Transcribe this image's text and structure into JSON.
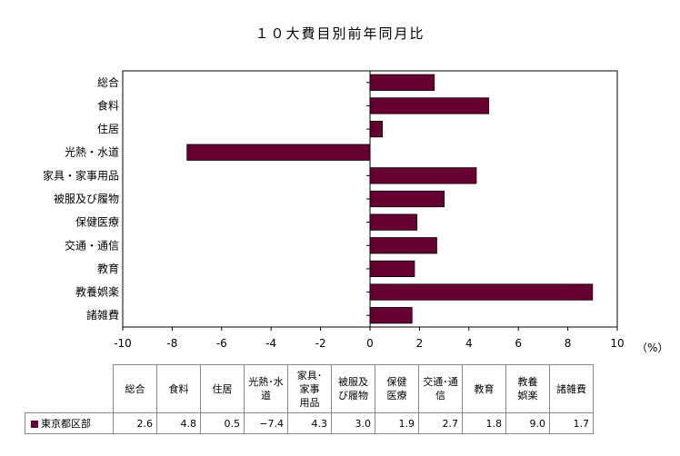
{
  "chart_data": {
    "type": "bar",
    "orientation": "horizontal",
    "title": "１０大費目別前年同月比",
    "unit_label": "（%）",
    "categories": [
      "総合",
      "食料",
      "住居",
      "光熱・水道",
      "家具・家事用品",
      "被服及び履物",
      "保健医療",
      "交通・通信",
      "教育",
      "教養娯楽",
      "諸雑費"
    ],
    "series": [
      {
        "name": "東京都区部",
        "values": [
          2.6,
          4.8,
          0.5,
          -7.4,
          4.3,
          3.0,
          1.9,
          2.7,
          1.8,
          9.0,
          1.7
        ],
        "color": "#660033"
      }
    ],
    "xlim": [
      -10,
      10
    ],
    "xticks": [
      "-10",
      "-8",
      "-6",
      "-4",
      "-2",
      "0",
      "2",
      "4",
      "6",
      "8",
      "10"
    ],
    "grid": false,
    "legend": "table-below"
  },
  "table": {
    "headers": [
      "総合",
      "食料",
      "住居",
      "光熱･水道",
      "家具･家事用品",
      "被服及び履物",
      "保健医療",
      "交通･通信",
      "教育",
      "教養娯楽",
      "諸雑費"
    ],
    "header_lines": [
      [
        "総合"
      ],
      [
        "食料"
      ],
      [
        "住居"
      ],
      [
        "光熱･水",
        "道"
      ],
      [
        "家具･",
        "家事",
        "用品"
      ],
      [
        "被服及",
        "び履物"
      ],
      [
        "保健",
        "医療"
      ],
      [
        "交通･通",
        "信"
      ],
      [
        "教育"
      ],
      [
        "教養",
        "娯楽"
      ],
      [
        "諸雑費"
      ]
    ],
    "row_label": "東京都区部",
    "values": [
      "2.6",
      "4.8",
      "0.5",
      "−7.4",
      "4.3",
      "3.0",
      "1.9",
      "2.7",
      "1.8",
      "9.0",
      "1.7"
    ]
  }
}
